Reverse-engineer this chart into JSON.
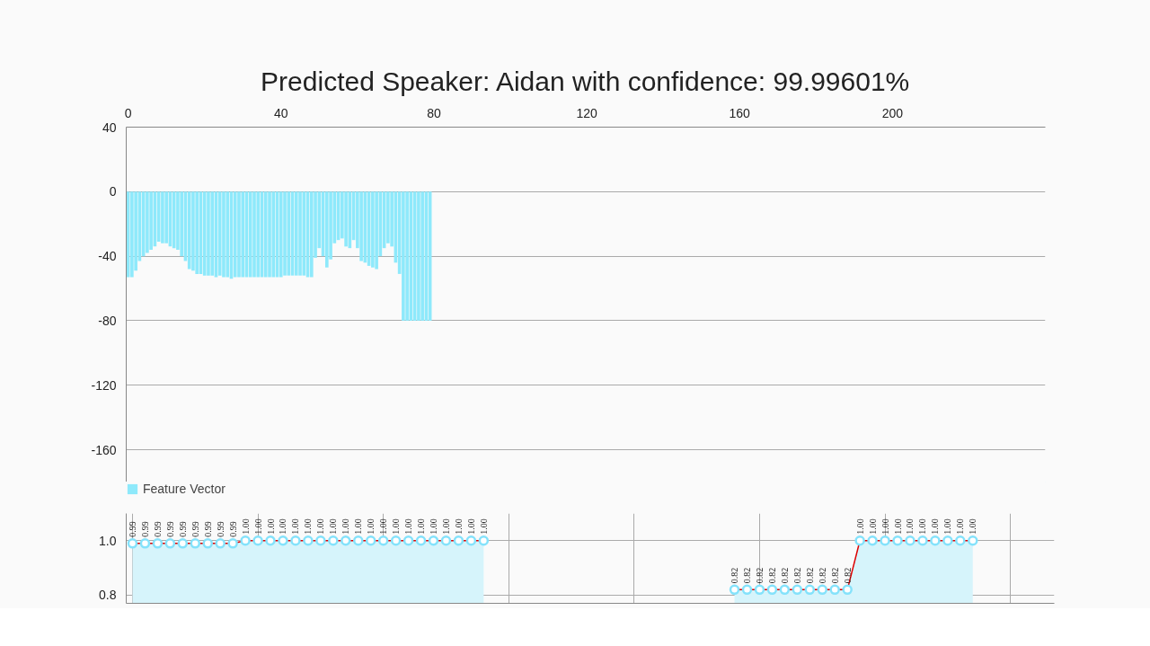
{
  "chart_data": [
    {
      "type": "bar",
      "title": "Predicted Speaker: Aidan with confidence: 99.99601%",
      "x": [
        0,
        1,
        2,
        3,
        4,
        5,
        6,
        7,
        8,
        9,
        10,
        11,
        12,
        13,
        14,
        15,
        16,
        17,
        18,
        19,
        20,
        21,
        22,
        23,
        24,
        25,
        26,
        27,
        28,
        29,
        30,
        31,
        32,
        33,
        34,
        35,
        36,
        37,
        38,
        39,
        40,
        41,
        42,
        43,
        44,
        45,
        46,
        47,
        48,
        49,
        50,
        51,
        52,
        53,
        54,
        55,
        56,
        57,
        58,
        59,
        60,
        61,
        62,
        63,
        64,
        65,
        66,
        67,
        68,
        69,
        70,
        71,
        72,
        73,
        74,
        75,
        76,
        77,
        78,
        79
      ],
      "series": [
        {
          "name": "Feature Vector",
          "color": "#8ee9fb",
          "values": [
            -53,
            -53,
            -49,
            -43,
            -40,
            -38,
            -36,
            -34,
            -31,
            -32,
            -32,
            -34,
            -35,
            -36,
            -40,
            -43,
            -48,
            -49,
            -51,
            -51,
            -52,
            -52,
            -52,
            -53,
            -52,
            -53,
            -53,
            -54,
            -53,
            -53,
            -53,
            -53,
            -53,
            -53,
            -53,
            -53,
            -53,
            -53,
            -53,
            -53,
            -53,
            -52,
            -52,
            -52,
            -52,
            -52,
            -52,
            -53,
            -53,
            -41,
            -35,
            -40,
            -47,
            -42,
            -32,
            -30,
            -29,
            -34,
            -35,
            -30,
            -35,
            -43,
            -44,
            -46,
            -47,
            -48,
            -40,
            -35,
            -32,
            -34,
            -44,
            -51,
            -80,
            -80,
            -80,
            -80,
            -80,
            -80,
            -80,
            -80
          ]
        }
      ],
      "xlim": [
        -0.5,
        240
      ],
      "xticks": [
        0,
        40,
        80,
        120,
        160,
        200
      ],
      "ylim": [
        -180,
        40
      ],
      "yticks": [
        40,
        0,
        -40,
        -80,
        -120,
        -160
      ],
      "grid": "y",
      "legend": "bottom left"
    },
    {
      "type": "area",
      "tick_labels": "y",
      "categories": [
        null,
        null,
        null,
        null,
        null,
        null,
        null,
        null,
        null,
        null,
        null,
        null,
        null,
        null,
        null,
        null,
        null,
        null,
        null,
        null,
        null,
        null,
        null,
        null,
        null,
        null,
        null,
        null,
        null,
        null,
        null,
        null,
        null,
        null,
        null,
        null,
        null,
        null,
        null,
        null,
        null,
        null,
        null,
        null,
        null,
        null,
        null,
        null,
        null,
        null,
        null,
        null,
        null,
        null,
        null,
        null,
        null,
        null,
        null,
        null,
        null,
        null,
        null,
        null,
        null,
        null,
        null,
        null,
        null,
        null,
        null,
        null,
        null,
        null
      ],
      "series": [
        {
          "color": "#d6f4fb",
          "values": [
            0.99,
            0.99,
            0.99,
            0.99,
            0.99,
            0.99,
            0.99,
            0.99,
            0.99,
            1.0,
            1.0,
            1.0,
            1.0,
            1.0,
            1.0,
            1.0,
            1.0,
            1.0,
            1.0,
            1.0,
            1.0,
            1.0,
            1.0,
            1.0,
            1.0,
            1.0,
            1.0,
            1.0,
            1.0,
            null,
            null,
            null,
            null,
            null,
            null,
            null,
            null,
            null,
            null,
            null,
            null,
            null,
            null,
            null,
            null,
            null,
            null,
            null,
            0.82,
            0.82,
            0.82,
            0.82,
            0.82,
            0.82,
            0.82,
            0.82,
            0.82,
            0.82,
            1.0,
            1.0,
            1.0,
            1.0,
            1.0,
            1.0,
            1.0,
            1.0,
            1.0,
            1.0,
            null,
            null,
            null,
            null,
            null,
            null
          ],
          "value_labels": [
            "0.99",
            "0.99",
            "0.99",
            "0.99",
            "0.99",
            "0.99",
            "0.99",
            "0.99",
            "0.99",
            "1.00",
            "1.00",
            "1.00",
            "1.00",
            "1.00",
            "1.00",
            "1.00",
            "1.00",
            "1.00",
            "1.00",
            "1.00",
            "1.00",
            "1.00",
            "1.00",
            "1.00",
            "1.00",
            "1.00",
            "1.00",
            "1.00",
            "1.00",
            null,
            null,
            null,
            null,
            null,
            null,
            null,
            null,
            null,
            null,
            null,
            null,
            null,
            null,
            null,
            null,
            null,
            null,
            null,
            "0.82",
            "0.82",
            "0.82",
            "0.82",
            "0.82",
            "0.82",
            "0.82",
            "0.82",
            "0.82",
            "0.82",
            "1.00",
            "1.00",
            "1.00",
            "1.00",
            "1.00",
            "1.00",
            "1.00",
            "1.00",
            "1.00",
            "1.00",
            null,
            null,
            null,
            null,
            null,
            null
          ]
        }
      ],
      "ylim": [
        0.77,
        1.1
      ],
      "yticks": [
        {
          "value": 0.8,
          "label": "0.8"
        },
        {
          "value": 1.0,
          "label": "1.0"
        }
      ],
      "grid": true,
      "marker": "circle"
    }
  ]
}
